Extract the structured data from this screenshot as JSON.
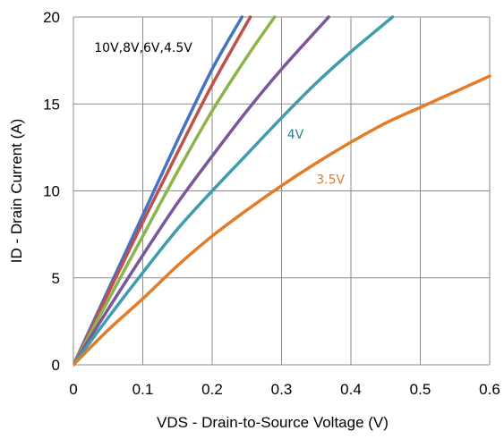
{
  "chart_data": {
    "type": "line",
    "title": "",
    "xlabel": "VDS - Drain-to-Source Voltage (V)",
    "ylabel": "ID - Drain Current (A)",
    "xlim": [
      0,
      0.6
    ],
    "ylim": [
      0,
      20
    ],
    "x_ticks": [
      "0",
      "0.1",
      "0.2",
      "0.3",
      "0.4",
      "0.5",
      "0.6"
    ],
    "y_ticks": [
      "0",
      "5",
      "10",
      "15",
      "20"
    ],
    "grid": true,
    "series": [
      {
        "color": "#4472C4",
        "points": [
          [
            0,
            0
          ],
          [
            0.05,
            4.3
          ],
          [
            0.1,
            8.6
          ],
          [
            0.15,
            12.9
          ],
          [
            0.2,
            17.0
          ],
          [
            0.243,
            20
          ]
        ]
      },
      {
        "color": "#C0504D",
        "points": [
          [
            0,
            0
          ],
          [
            0.05,
            4.1
          ],
          [
            0.1,
            8.2
          ],
          [
            0.15,
            12.2
          ],
          [
            0.2,
            16.1
          ],
          [
            0.255,
            20
          ]
        ]
      },
      {
        "color": "#8DB34C",
        "points": [
          [
            0,
            0
          ],
          [
            0.05,
            3.7
          ],
          [
            0.1,
            7.4
          ],
          [
            0.15,
            11.1
          ],
          [
            0.2,
            14.6
          ],
          [
            0.25,
            17.7
          ],
          [
            0.29,
            20
          ]
        ]
      },
      {
        "color": "#7A569B",
        "points": [
          [
            0,
            0
          ],
          [
            0.05,
            3.2
          ],
          [
            0.1,
            6.3
          ],
          [
            0.15,
            9.3
          ],
          [
            0.2,
            12.0
          ],
          [
            0.25,
            14.6
          ],
          [
            0.3,
            17.0
          ],
          [
            0.368,
            20
          ]
        ]
      },
      {
        "color": "#3F9BB0",
        "points": [
          [
            0,
            0
          ],
          [
            0.05,
            2.7
          ],
          [
            0.1,
            5.3
          ],
          [
            0.15,
            7.8
          ],
          [
            0.2,
            10.0
          ],
          [
            0.25,
            12.1
          ],
          [
            0.3,
            14.2
          ],
          [
            0.35,
            16.2
          ],
          [
            0.4,
            18.0
          ],
          [
            0.46,
            20
          ]
        ]
      },
      {
        "color": "#E37B27",
        "points": [
          [
            0,
            0
          ],
          [
            0.05,
            2.0
          ],
          [
            0.1,
            3.8
          ],
          [
            0.15,
            5.7
          ],
          [
            0.2,
            7.4
          ],
          [
            0.25,
            8.9
          ],
          [
            0.3,
            10.3
          ],
          [
            0.35,
            11.6
          ],
          [
            0.4,
            12.8
          ],
          [
            0.45,
            13.9
          ],
          [
            0.5,
            14.8
          ],
          [
            0.55,
            15.7
          ],
          [
            0.6,
            16.6
          ]
        ]
      }
    ],
    "annotations": [
      {
        "text": "10V,8V,6V,4.5V",
        "x": 0.03,
        "y": 18.0,
        "color": "#000000"
      },
      {
        "text": "4V",
        "x": 0.308,
        "y": 13.0,
        "color": "#2E7D8C"
      },
      {
        "text": "3.5V",
        "x": 0.35,
        "y": 10.4,
        "color": "#E37B27"
      }
    ]
  }
}
